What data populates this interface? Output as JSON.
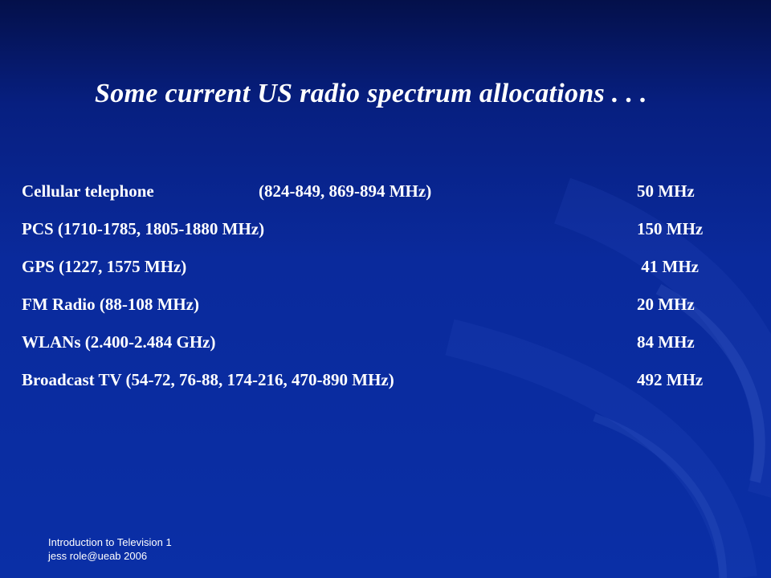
{
  "slide": {
    "title": "Some current US radio spectrum allocations . . .",
    "rows": [
      {
        "service": "Cellular telephone",
        "sub": "(824-849, 869-894 MHz)",
        "bandwidth": "50 MHz"
      },
      {
        "service": "PCS (1710-1785, 1805-1880 MHz)",
        "sub": "",
        "bandwidth": "150 MHz"
      },
      {
        "service": "GPS (1227, 1575 MHz)",
        "sub": "",
        "bandwidth": " 41 MHz"
      },
      {
        "service": "FM Radio (88-108 MHz)",
        "sub": "",
        "bandwidth": "20 MHz"
      },
      {
        "service": "WLANs (2.400-2.484 GHz)",
        "sub": "",
        "bandwidth": "84 MHz"
      },
      {
        "service": "Broadcast TV (54-72, 76-88, 174-216, 470-890 MHz)",
        "sub": "",
        "bandwidth": "492 MHz"
      }
    ],
    "footer": {
      "line1": "Introduction to Television 1",
      "line2": "jess role@ueab 2006"
    }
  },
  "colors": {
    "background_top": "#04104a",
    "background_bottom": "#0a2fa6",
    "text": "#ffffff"
  }
}
